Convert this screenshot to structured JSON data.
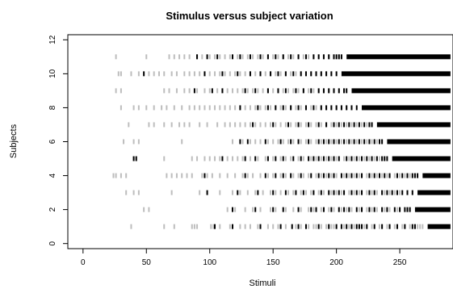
{
  "chart_data": {
    "type": "scatter",
    "title": "Stimulus versus subject variation",
    "xlabel": "Stimuli",
    "ylabel": "Subjects",
    "xlim": [
      -12,
      292
    ],
    "ylim": [
      -0.3,
      12.3
    ],
    "xticks": [
      0,
      50,
      100,
      150,
      200,
      250
    ],
    "yticks": [
      0,
      2,
      4,
      6,
      8,
      10,
      12
    ],
    "grid": false,
    "legend": "none",
    "x_max": 290,
    "colors": {
      "light": "#bdbdbd",
      "dark": "#000000",
      "frame": "#000000"
    },
    "rows": [
      {
        "subject": 1,
        "start": 38,
        "solid_from": 272,
        "light": [
          38,
          64,
          72,
          86,
          88,
          90,
          101,
          103,
          108,
          116,
          124,
          128,
          132,
          138,
          146,
          150,
          154,
          160,
          168,
          172,
          178,
          182,
          184,
          188,
          192,
          196,
          198,
          206,
          210,
          214,
          222,
          228,
          234,
          240,
          246,
          252,
          258,
          264,
          266,
          268
        ],
        "dark": [
          104,
          118,
          140,
          156,
          165,
          170,
          176,
          186,
          194,
          200,
          204,
          208,
          212,
          216,
          218,
          220,
          224,
          230,
          236,
          242,
          248,
          254,
          260,
          262
        ]
      },
      {
        "subject": 2,
        "start": 48,
        "solid_from": 262,
        "light": [
          48,
          52,
          114,
          120,
          128,
          134,
          140,
          148,
          152,
          160,
          166,
          172,
          178,
          182,
          188,
          194,
          198,
          204,
          208,
          212,
          218,
          224,
          228,
          232,
          238,
          242,
          248
        ],
        "dark": [
          118,
          136,
          150,
          158,
          170,
          180,
          184,
          190,
          196,
          202,
          206,
          210,
          216,
          220,
          226,
          230,
          236,
          240,
          246,
          250,
          254,
          256,
          258
        ]
      },
      {
        "subject": 3,
        "start": 34,
        "solid_from": 264,
        "light": [
          34,
          40,
          44,
          70,
          92,
          108,
          118,
          124,
          130,
          136,
          142,
          148,
          152,
          156,
          162,
          166,
          172,
          176,
          180,
          186,
          190,
          196,
          200,
          204,
          210,
          214,
          218,
          224,
          228,
          232,
          238,
          242,
          246,
          250
        ],
        "dark": [
          98,
          122,
          138,
          150,
          160,
          168,
          174,
          182,
          188,
          194,
          198,
          202,
          206,
          212,
          216,
          220,
          226,
          230,
          236,
          240,
          244,
          248,
          252,
          256,
          260
        ]
      },
      {
        "subject": 4,
        "start": 24,
        "solid_from": 268,
        "light": [
          24,
          26,
          30,
          34,
          66,
          70,
          74,
          78,
          82,
          86,
          94,
          98,
          102,
          108,
          114,
          120,
          126,
          130,
          134,
          140,
          146,
          150,
          156,
          160,
          166,
          170,
          174,
          178,
          184,
          188,
          192,
          196,
          200,
          206,
          210,
          214,
          218,
          224,
          228,
          232,
          236,
          240,
          246,
          250,
          254,
          258
        ],
        "dark": [
          96,
          128,
          144,
          152,
          158,
          164,
          172,
          180,
          186,
          190,
          194,
          198,
          204,
          208,
          212,
          216,
          220,
          226,
          230,
          234,
          238,
          242,
          248,
          252,
          256,
          260,
          262,
          264
        ]
      },
      {
        "subject": 5,
        "start": 64,
        "solid_from": 244,
        "light": [
          64,
          86,
          90,
          96,
          100,
          104,
          108,
          114,
          118,
          122,
          126,
          132,
          138,
          144,
          150,
          156,
          160,
          164,
          170,
          174,
          180,
          184,
          188,
          192,
          196,
          200,
          206,
          210,
          214,
          218,
          222,
          226,
          230,
          234
        ],
        "dark": [
          40,
          42,
          110,
          128,
          136,
          146,
          152,
          158,
          166,
          172,
          178,
          182,
          186,
          190,
          194,
          198,
          202,
          208,
          212,
          216,
          220,
          224,
          228,
          232,
          236,
          238,
          240
        ]
      },
      {
        "subject": 6,
        "start": 32,
        "solid_from": 240,
        "light": [
          32,
          40,
          44,
          78,
          118,
          126,
          132,
          136,
          140,
          146,
          150,
          154,
          158,
          162,
          166,
          172,
          176,
          180,
          184,
          188,
          192,
          196,
          200,
          204,
          208,
          212,
          216,
          220,
          224,
          228,
          232
        ],
        "dark": [
          124,
          130,
          144,
          156,
          164,
          170,
          178,
          186,
          190,
          194,
          198,
          202,
          206,
          210,
          214,
          218,
          222,
          226,
          230,
          234,
          236
        ]
      },
      {
        "subject": 7,
        "start": 36,
        "solid_from": 232,
        "light": [
          36,
          52,
          56,
          64,
          70,
          76,
          80,
          84,
          92,
          98,
          106,
          112,
          116,
          120,
          124,
          128,
          132,
          136,
          140,
          144,
          148,
          152,
          156,
          160,
          164,
          168,
          172,
          176,
          180,
          184,
          188,
          192,
          196,
          200,
          204,
          208,
          212,
          216,
          220,
          224
        ],
        "dark": [
          134,
          150,
          162,
          170,
          178,
          186,
          192,
          198,
          202,
          206,
          210,
          214,
          218,
          222,
          226,
          228
        ]
      },
      {
        "subject": 8,
        "start": 30,
        "solid_from": 220,
        "light": [
          30,
          40,
          44,
          50,
          56,
          62,
          66,
          72,
          78,
          84,
          88,
          92,
          96,
          100,
          104,
          108,
          112,
          116,
          120,
          124,
          128,
          132,
          136,
          140,
          144,
          148,
          152,
          156,
          160,
          164,
          168,
          172,
          176,
          180,
          184,
          188,
          192,
          196,
          200,
          204,
          208,
          212
        ],
        "dark": [
          124,
          138,
          146,
          152,
          158,
          164,
          170,
          176,
          182,
          188,
          192,
          196,
          200,
          204,
          208,
          212,
          216
        ]
      },
      {
        "subject": 9,
        "start": 26,
        "solid_from": 212,
        "light": [
          26,
          30,
          64,
          68,
          74,
          80,
          84,
          90,
          96,
          100,
          106,
          110,
          114,
          118,
          122,
          126,
          130,
          134,
          138,
          142,
          146,
          150,
          154,
          158,
          162,
          166,
          170,
          174,
          178,
          182,
          186,
          190,
          194,
          198,
          202,
          206
        ],
        "dark": [
          88,
          102,
          110,
          128,
          136,
          146,
          154,
          160,
          168,
          174,
          180,
          186,
          190,
          194,
          198,
          202,
          206,
          208
        ]
      },
      {
        "subject": 10,
        "start": 28,
        "solid_from": 204,
        "light": [
          28,
          30,
          38,
          44,
          52,
          56,
          60,
          64,
          70,
          74,
          80,
          84,
          88,
          92,
          96,
          100,
          104,
          108,
          112,
          116,
          120,
          124,
          128,
          132,
          136,
          140,
          144,
          148,
          152,
          156,
          160,
          164,
          168,
          172,
          176,
          180,
          184,
          188,
          192,
          196
        ],
        "dark": [
          48,
          96,
          110,
          122,
          132,
          140,
          148,
          154,
          160,
          166,
          172,
          176,
          180,
          184,
          188,
          192,
          196,
          200
        ]
      },
      {
        "subject": 11,
        "start": 26,
        "solid_from": 208,
        "light": [
          26,
          50,
          68,
          72,
          76,
          80,
          84,
          90,
          94,
          100,
          104,
          108,
          112,
          116,
          122,
          126,
          130,
          134,
          138,
          142,
          146,
          150,
          154,
          158,
          162,
          166,
          170,
          174,
          178,
          182,
          186,
          190,
          194,
          198,
          202
        ],
        "dark": [
          90,
          98,
          106,
          118,
          124,
          132,
          140,
          146,
          152,
          158,
          164,
          170,
          176,
          182,
          186,
          190,
          194,
          198,
          200,
          202,
          204
        ]
      }
    ]
  }
}
